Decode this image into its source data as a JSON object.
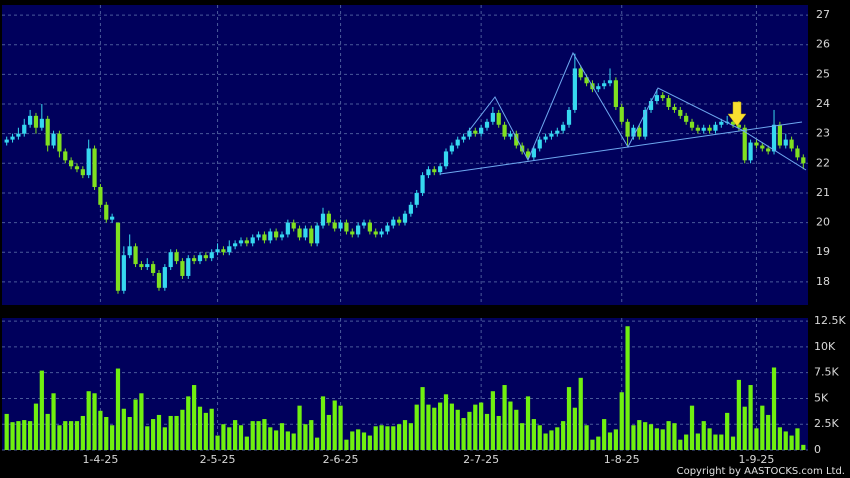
{
  "chart_data": {
    "type": "candlestick",
    "copyright": "Copyright by AASTOCKS.com Ltd.",
    "up_color": "#36d8f0",
    "down_color": "#80e020",
    "volume_color": "#70f010",
    "grid": true,
    "xlim": [
      -0.8,
      136.8
    ],
    "xticks": [
      {
        "value": 16,
        "label": "1-4-25"
      },
      {
        "value": 36,
        "label": "2-5-25"
      },
      {
        "value": 57,
        "label": "2-6-25"
      },
      {
        "value": 81,
        "label": "2-7-25"
      },
      {
        "value": 105,
        "label": "1-8-25"
      },
      {
        "value": 128,
        "label": "1-9-25"
      }
    ],
    "ylim": [
      17.22,
      27.34
    ],
    "yticks": [
      18,
      19,
      20,
      21,
      22,
      23,
      24,
      25,
      26,
      27
    ],
    "y2lim": [
      0,
      12800
    ],
    "y2ticks": [
      0,
      {
        "value": 2500,
        "label": "2.5K"
      },
      {
        "value": 5000,
        "label": "5K"
      },
      {
        "value": 7500,
        "label": "7.5K"
      },
      {
        "value": 10000,
        "label": "10K"
      },
      {
        "value": 12500,
        "label": "12.5K"
      }
    ],
    "ohlc": [
      [
        22.7,
        22.9,
        22.6,
        22.8
      ],
      [
        22.8,
        23.0,
        22.7,
        22.9
      ],
      [
        22.9,
        23.2,
        22.8,
        23.0
      ],
      [
        23.0,
        23.5,
        22.9,
        23.3
      ],
      [
        23.3,
        23.8,
        23.2,
        23.6
      ],
      [
        23.6,
        23.7,
        23.0,
        23.2
      ],
      [
        23.2,
        24.0,
        23.1,
        23.5
      ],
      [
        23.5,
        23.6,
        22.4,
        22.6
      ],
      [
        22.6,
        23.1,
        22.5,
        23.0
      ],
      [
        23.0,
        23.1,
        22.2,
        22.4
      ],
      [
        22.4,
        22.5,
        22.0,
        22.1
      ],
      [
        22.1,
        22.2,
        21.8,
        21.9
      ],
      [
        21.9,
        22.0,
        21.7,
        21.8
      ],
      [
        21.8,
        21.9,
        21.5,
        21.6
      ],
      [
        21.6,
        22.8,
        21.5,
        22.5
      ],
      [
        22.5,
        22.6,
        21.1,
        21.2
      ],
      [
        21.2,
        21.3,
        20.5,
        20.6
      ],
      [
        20.6,
        20.7,
        20.0,
        20.1
      ],
      [
        20.1,
        20.3,
        20.0,
        20.2
      ],
      [
        20.0,
        20.0,
        17.6,
        17.7
      ],
      [
        17.7,
        19.2,
        17.6,
        18.9
      ],
      [
        18.9,
        19.6,
        18.8,
        19.2
      ],
      [
        19.2,
        19.3,
        18.5,
        18.6
      ],
      [
        18.6,
        18.7,
        18.4,
        18.5
      ],
      [
        18.5,
        18.8,
        18.4,
        18.6
      ],
      [
        18.6,
        18.7,
        18.2,
        18.3
      ],
      [
        18.3,
        18.4,
        17.7,
        17.8
      ],
      [
        17.8,
        18.6,
        17.7,
        18.5
      ],
      [
        18.5,
        19.1,
        18.4,
        19.0
      ],
      [
        19.0,
        19.1,
        18.6,
        18.7
      ],
      [
        18.7,
        18.8,
        18.1,
        18.2
      ],
      [
        18.2,
        18.9,
        18.1,
        18.8
      ],
      [
        18.8,
        18.9,
        18.6,
        18.7
      ],
      [
        18.7,
        19.0,
        18.6,
        18.9
      ],
      [
        18.9,
        19.0,
        18.7,
        18.8
      ],
      [
        18.8,
        19.1,
        18.7,
        19.0
      ],
      [
        19.0,
        19.3,
        18.9,
        19.1
      ],
      [
        19.1,
        19.2,
        18.9,
        19.0
      ],
      [
        19.0,
        19.4,
        18.9,
        19.2
      ],
      [
        19.2,
        19.4,
        19.1,
        19.3
      ],
      [
        19.3,
        19.5,
        19.2,
        19.4
      ],
      [
        19.4,
        19.5,
        19.2,
        19.3
      ],
      [
        19.3,
        19.6,
        19.2,
        19.5
      ],
      [
        19.5,
        19.7,
        19.4,
        19.6
      ],
      [
        19.6,
        19.7,
        19.3,
        19.4
      ],
      [
        19.4,
        19.8,
        19.3,
        19.7
      ],
      [
        19.7,
        19.8,
        19.4,
        19.5
      ],
      [
        19.5,
        19.7,
        19.4,
        19.6
      ],
      [
        19.6,
        20.1,
        19.5,
        20.0
      ],
      [
        20.0,
        20.1,
        19.7,
        19.8
      ],
      [
        19.8,
        19.9,
        19.4,
        19.5
      ],
      [
        19.5,
        19.9,
        19.4,
        19.8
      ],
      [
        19.8,
        19.9,
        19.2,
        19.3
      ],
      [
        19.3,
        20.0,
        19.2,
        19.9
      ],
      [
        19.9,
        20.5,
        19.8,
        20.3
      ],
      [
        20.3,
        20.4,
        19.9,
        20.0
      ],
      [
        20.0,
        20.1,
        19.7,
        19.8
      ],
      [
        19.8,
        20.1,
        19.7,
        20.0
      ],
      [
        20.0,
        20.1,
        19.6,
        19.7
      ],
      [
        19.7,
        19.8,
        19.5,
        19.6
      ],
      [
        19.6,
        20.0,
        19.5,
        19.9
      ],
      [
        19.9,
        20.1,
        19.8,
        20.0
      ],
      [
        20.0,
        20.1,
        19.6,
        19.7
      ],
      [
        19.7,
        19.8,
        19.5,
        19.6
      ],
      [
        19.6,
        19.8,
        19.5,
        19.7
      ],
      [
        19.7,
        20.0,
        19.6,
        19.9
      ],
      [
        19.9,
        20.2,
        19.8,
        20.1
      ],
      [
        20.1,
        20.2,
        19.9,
        20.0
      ],
      [
        20.0,
        20.4,
        19.9,
        20.3
      ],
      [
        20.3,
        20.7,
        20.2,
        20.6
      ],
      [
        20.6,
        21.1,
        20.5,
        21.0
      ],
      [
        21.0,
        21.7,
        20.9,
        21.6
      ],
      [
        21.6,
        21.9,
        21.5,
        21.8
      ],
      [
        21.8,
        21.9,
        21.6,
        21.7
      ],
      [
        21.7,
        22.0,
        21.6,
        21.9
      ],
      [
        21.9,
        22.5,
        21.8,
        22.4
      ],
      [
        22.4,
        22.7,
        22.3,
        22.6
      ],
      [
        22.6,
        22.9,
        22.5,
        22.8
      ],
      [
        22.8,
        23.0,
        22.7,
        22.9
      ],
      [
        22.9,
        23.2,
        22.8,
        23.1
      ],
      [
        23.1,
        23.2,
        22.9,
        23.0
      ],
      [
        23.0,
        23.3,
        22.9,
        23.2
      ],
      [
        23.2,
        23.5,
        23.1,
        23.4
      ],
      [
        23.4,
        23.9,
        23.3,
        23.7
      ],
      [
        23.7,
        23.8,
        23.2,
        23.3
      ],
      [
        23.3,
        23.4,
        22.8,
        22.9
      ],
      [
        22.9,
        23.1,
        22.8,
        23.0
      ],
      [
        23.0,
        23.1,
        22.5,
        22.6
      ],
      [
        22.6,
        22.7,
        22.3,
        22.4
      ],
      [
        22.4,
        22.5,
        22.1,
        22.2
      ],
      [
        22.2,
        22.6,
        22.1,
        22.5
      ],
      [
        22.5,
        22.9,
        22.4,
        22.8
      ],
      [
        22.8,
        23.0,
        22.7,
        22.9
      ],
      [
        22.9,
        23.1,
        22.8,
        23.0
      ],
      [
        23.0,
        23.2,
        22.9,
        23.1
      ],
      [
        23.1,
        23.4,
        23.0,
        23.3
      ],
      [
        23.3,
        23.9,
        23.2,
        23.8
      ],
      [
        23.8,
        25.7,
        23.7,
        25.2
      ],
      [
        25.2,
        25.3,
        24.8,
        24.9
      ],
      [
        24.9,
        25.0,
        24.6,
        24.7
      ],
      [
        24.7,
        24.8,
        24.4,
        24.5
      ],
      [
        24.5,
        24.7,
        24.4,
        24.6
      ],
      [
        24.6,
        24.8,
        24.5,
        24.7
      ],
      [
        24.7,
        25.2,
        24.6,
        24.8
      ],
      [
        24.8,
        24.9,
        23.8,
        23.9
      ],
      [
        23.9,
        24.0,
        23.3,
        23.4
      ],
      [
        23.4,
        23.5,
        22.6,
        22.9
      ],
      [
        22.9,
        23.3,
        22.8,
        23.2
      ],
      [
        23.2,
        23.3,
        22.8,
        22.9
      ],
      [
        22.9,
        23.9,
        22.8,
        23.8
      ],
      [
        23.8,
        24.2,
        23.7,
        24.1
      ],
      [
        24.1,
        24.5,
        24.0,
        24.3
      ],
      [
        24.3,
        24.4,
        24.1,
        24.2
      ],
      [
        24.2,
        24.3,
        23.8,
        23.9
      ],
      [
        23.9,
        24.0,
        23.7,
        23.8
      ],
      [
        23.8,
        23.9,
        23.5,
        23.6
      ],
      [
        23.6,
        23.7,
        23.3,
        23.4
      ],
      [
        23.4,
        23.5,
        23.1,
        23.2
      ],
      [
        23.2,
        23.3,
        23.0,
        23.1
      ],
      [
        23.1,
        23.3,
        23.0,
        23.2
      ],
      [
        23.2,
        23.3,
        23.0,
        23.1
      ],
      [
        23.1,
        23.4,
        23.0,
        23.3
      ],
      [
        23.3,
        23.5,
        23.2,
        23.4
      ],
      [
        23.4,
        23.6,
        23.3,
        23.4
      ],
      [
        23.4,
        23.5,
        23.2,
        23.3
      ],
      [
        23.3,
        24.1,
        23.1,
        23.2
      ],
      [
        23.2,
        23.3,
        22.0,
        22.1
      ],
      [
        22.1,
        22.8,
        22.0,
        22.7
      ],
      [
        22.7,
        22.8,
        22.5,
        22.6
      ],
      [
        22.6,
        22.7,
        22.4,
        22.5
      ],
      [
        22.5,
        22.6,
        22.3,
        22.4
      ],
      [
        22.4,
        23.8,
        22.3,
        23.3
      ],
      [
        23.3,
        23.4,
        22.5,
        22.6
      ],
      [
        22.6,
        23.0,
        22.5,
        22.8
      ],
      [
        22.8,
        22.9,
        22.4,
        22.5
      ],
      [
        22.5,
        22.6,
        22.1,
        22.2
      ],
      [
        22.2,
        22.3,
        21.8,
        22.0
      ]
    ],
    "volume": [
      3500,
      2700,
      2800,
      2900,
      2800,
      4500,
      7700,
      3500,
      5500,
      2400,
      2800,
      2800,
      2800,
      3300,
      5700,
      5500,
      3800,
      3200,
      2400,
      7900,
      4000,
      3200,
      4900,
      5500,
      2300,
      3000,
      3400,
      2200,
      3300,
      3300,
      3900,
      5200,
      6300,
      4200,
      3600,
      4000,
      1400,
      2500,
      2200,
      2900,
      2400,
      1300,
      2800,
      2800,
      3000,
      2200,
      1900,
      2600,
      1800,
      1600,
      4300,
      2500,
      2900,
      1200,
      5200,
      3400,
      4800,
      4300,
      1000,
      1800,
      2000,
      1700,
      1400,
      2300,
      2400,
      2300,
      2300,
      2500,
      2900,
      2600,
      4400,
      6100,
      4400,
      4100,
      4600,
      5400,
      4500,
      3900,
      3100,
      3700,
      4400,
      4600,
      3500,
      5700,
      3300,
      6300,
      4700,
      3900,
      2600,
      5200,
      3000,
      2400,
      1600,
      1900,
      2200,
      2800,
      6100,
      4100,
      7000,
      2400,
      1000,
      1300,
      3000,
      1700,
      2000,
      5600,
      12000,
      2400,
      2900,
      2700,
      2500,
      2100,
      2000,
      2800,
      2600,
      1000,
      1500,
      4300,
      1600,
      2800,
      2100,
      1500,
      1500,
      3600,
      1300,
      6800,
      4200,
      6300,
      2100,
      4300,
      3400,
      8000,
      2200,
      1800,
      1400,
      2100,
      500
    ]
  }
}
